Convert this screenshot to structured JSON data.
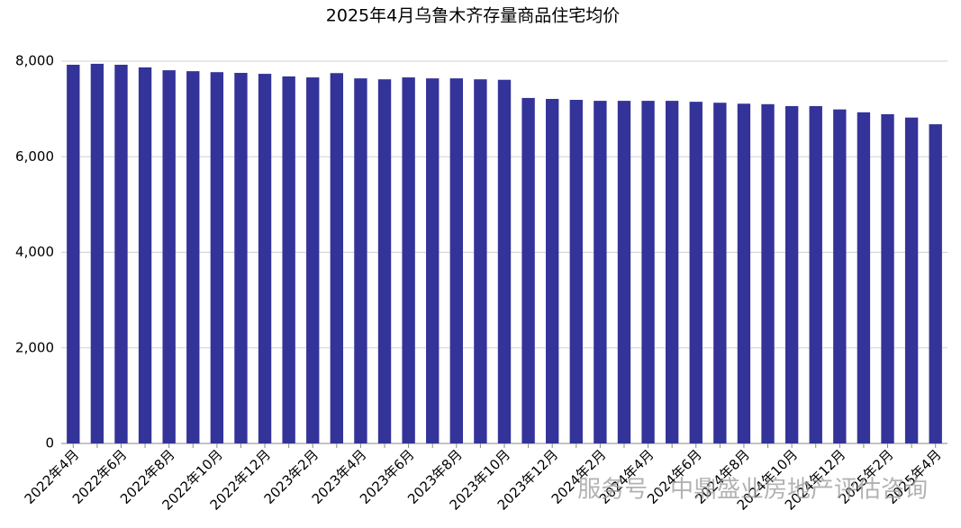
{
  "chart_data": {
    "type": "bar",
    "title": "2025年4月乌鲁木齐存量商品住宅均价",
    "categories": [
      "2022年4月",
      null,
      "2022年6月",
      null,
      "2022年8月",
      null,
      "2022年10月",
      null,
      "2022年12月",
      null,
      "2023年2月",
      null,
      "2023年4月",
      null,
      "2023年6月",
      null,
      "2023年8月",
      null,
      "2023年10月",
      null,
      "2023年12月",
      null,
      "2024年2月",
      null,
      "2024年4月",
      null,
      "2024年6月",
      null,
      "2024年8月",
      null,
      "2024年10月",
      null,
      "2024年12月",
      null,
      "2025年2月",
      null,
      "2025年4月"
    ],
    "values": [
      7925,
      7945,
      7925,
      7870,
      7810,
      7790,
      7770,
      7755,
      7735,
      7680,
      7660,
      7750,
      7640,
      7620,
      7660,
      7640,
      7640,
      7620,
      7610,
      7230,
      7210,
      7190,
      7170,
      7170,
      7170,
      7170,
      7150,
      7130,
      7110,
      7100,
      7060,
      7060,
      6990,
      6930,
      6890,
      6820,
      6680
    ],
    "color": "#333399",
    "ylim": [
      0,
      8000
    ],
    "yticks": [
      0,
      {
        "value": 2000,
        "label": "2,000"
      },
      {
        "value": 4000,
        "label": "4,000"
      },
      {
        "value": 6000,
        "label": "6,000"
      },
      {
        "value": 8000,
        "label": "8,000"
      }
    ],
    "grid": true,
    "watermark": "服务号 · 中鼎盛业房地产评估咨询"
  }
}
